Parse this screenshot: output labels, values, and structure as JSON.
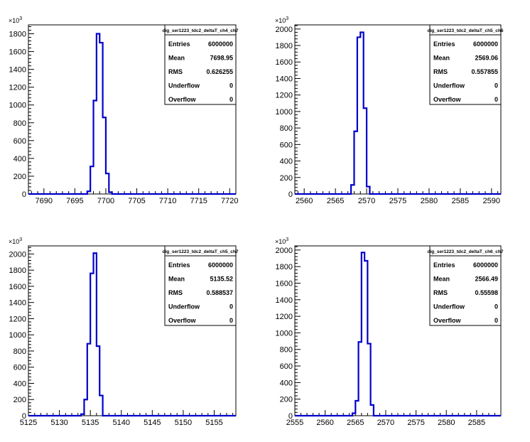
{
  "chart_data": [
    {
      "type": "histogram",
      "title": "dig_ser1223_tdc2_deltaT_ch4_ch7",
      "y_multiplier_label": "10^3",
      "xlim": [
        7687.5,
        7721
      ],
      "ylim": [
        0,
        1900
      ],
      "x_ticks": [
        7690,
        7695,
        7700,
        7705,
        7710,
        7715,
        7720
      ],
      "y_ticks": [
        0,
        200,
        400,
        600,
        800,
        1000,
        1200,
        1400,
        1600,
        1800
      ],
      "bin_edges": [
        7697.0,
        7697.5,
        7698.0,
        7698.5,
        7699.0,
        7699.5,
        7700.0,
        7700.5,
        7701.0
      ],
      "bin_values": [
        30,
        310,
        1050,
        1800,
        1700,
        860,
        230,
        20
      ],
      "stats": [
        {
          "label": "Entries",
          "value": "6000000"
        },
        {
          "label": "Mean",
          "value": "7698.95"
        },
        {
          "label": "RMS",
          "value": "0.626255"
        },
        {
          "label": "Underflow",
          "value": "0"
        },
        {
          "label": "Overflow",
          "value": "0"
        }
      ]
    },
    {
      "type": "histogram",
      "title": "dig_ser1223_tdc2_deltaT_ch5_ch6",
      "y_multiplier_label": "10^3",
      "xlim": [
        2558.5,
        2591.5
      ],
      "ylim": [
        0,
        2050
      ],
      "x_ticks": [
        2560,
        2565,
        2570,
        2575,
        2580,
        2585,
        2590
      ],
      "y_ticks": [
        0,
        200,
        400,
        600,
        800,
        1000,
        1200,
        1400,
        1600,
        1800,
        2000
      ],
      "bin_edges": [
        2567.5,
        2568.0,
        2568.5,
        2569.0,
        2569.5,
        2570.0,
        2570.5
      ],
      "bin_values": [
        110,
        760,
        1900,
        1960,
        1040,
        90
      ],
      "stats": [
        {
          "label": "Entries",
          "value": "6000000"
        },
        {
          "label": "Mean",
          "value": "2569.06"
        },
        {
          "label": "RMS",
          "value": "0.557855"
        },
        {
          "label": "Underflow",
          "value": "0"
        },
        {
          "label": "Overflow",
          "value": "0"
        }
      ]
    },
    {
      "type": "histogram",
      "title": "dig_ser1223_tdc2_deltaT_ch5_ch7",
      "y_multiplier_label": "10^3",
      "xlim": [
        5125,
        5158.5
      ],
      "ylim": [
        0,
        2100
      ],
      "x_ticks": [
        5125,
        5130,
        5135,
        5140,
        5145,
        5150,
        5155
      ],
      "y_ticks": [
        0,
        200,
        400,
        600,
        800,
        1000,
        1200,
        1400,
        1600,
        1800,
        2000
      ],
      "bin_edges": [
        5133.5,
        5134.0,
        5134.5,
        5135.0,
        5135.5,
        5136.0,
        5136.5,
        5137.0
      ],
      "bin_values": [
        20,
        200,
        890,
        1760,
        2010,
        860,
        250
      ],
      "stats": [
        {
          "label": "Entries",
          "value": "6000000"
        },
        {
          "label": "Mean",
          "value": "5135.52"
        },
        {
          "label": "RMS",
          "value": "0.588537"
        },
        {
          "label": "Underflow",
          "value": "0"
        },
        {
          "label": "Overflow",
          "value": "0"
        }
      ]
    },
    {
      "type": "histogram",
      "title": "dig_ser1223_tdc2_deltaT_ch6_ch7",
      "y_multiplier_label": "10^3",
      "xlim": [
        2555,
        2589
      ],
      "ylim": [
        0,
        2050
      ],
      "x_ticks": [
        2555,
        2560,
        2565,
        2570,
        2575,
        2580,
        2585
      ],
      "y_ticks": [
        0,
        200,
        400,
        600,
        800,
        1000,
        1200,
        1400,
        1600,
        1800,
        2000
      ],
      "bin_edges": [
        2564.5,
        2565.0,
        2565.5,
        2566.0,
        2566.5,
        2567.0,
        2567.5,
        2568.0
      ],
      "bin_values": [
        30,
        180,
        890,
        1970,
        1870,
        870,
        130
      ],
      "stats": [
        {
          "label": "Entries",
          "value": "6000000"
        },
        {
          "label": "Mean",
          "value": "2566.49"
        },
        {
          "label": "RMS",
          "value": "0.55598"
        },
        {
          "label": "Underflow",
          "value": "0"
        },
        {
          "label": "Overflow",
          "value": "0"
        }
      ]
    }
  ]
}
